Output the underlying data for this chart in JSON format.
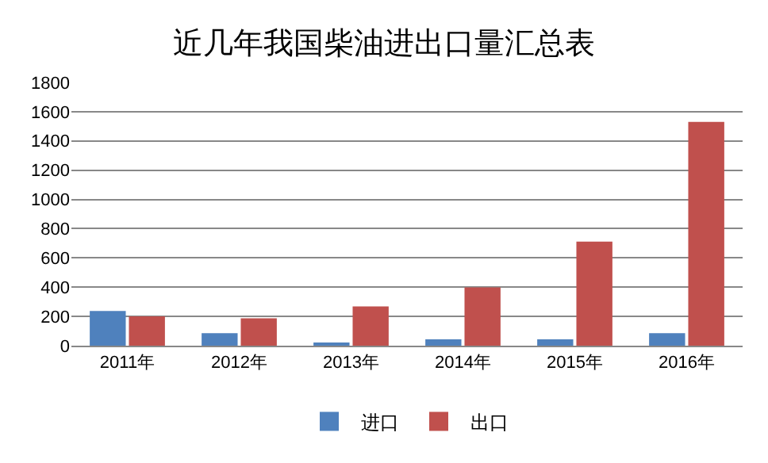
{
  "chart_data": {
    "type": "bar",
    "title": "近几年我国柴油进出口量汇总表",
    "categories": [
      "2011年",
      "2012年",
      "2013年",
      "2014年",
      "2015年",
      "2016年"
    ],
    "series": [
      {
        "name": "进口",
        "color": "#4f81bd",
        "values": [
          237,
          86,
          22,
          43,
          43,
          86
        ]
      },
      {
        "name": "出口",
        "color": "#c0504d",
        "values": [
          201,
          187,
          269,
          399,
          711,
          1530
        ]
      }
    ],
    "ylim": [
      0,
      1800
    ],
    "yticks": [
      0,
      200,
      400,
      600,
      800,
      1000,
      1200,
      1400,
      1600,
      1800
    ],
    "grid": "y",
    "legend": "bottom"
  }
}
